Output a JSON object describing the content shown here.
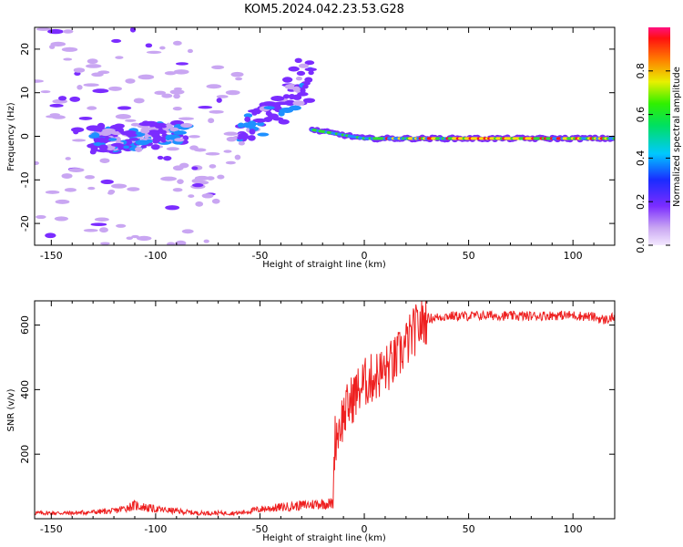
{
  "title": "KOM5.2024.042.23.53.G28",
  "chart_data": [
    {
      "type": "heatmap",
      "xlabel": "Height of straight line (km)",
      "ylabel": "Frequency (Hz)",
      "xlim": [
        -158,
        120
      ],
      "ylim": [
        -25,
        25
      ],
      "x_ticks": [
        -150,
        -100,
        -50,
        0,
        50,
        100
      ],
      "y_ticks": [
        -20,
        -10,
        0,
        10,
        20
      ],
      "colorbar": {
        "label": "Normalized spectral amplitude",
        "range": [
          0,
          1
        ],
        "ticks": [
          0.0,
          0.2,
          0.4,
          0.6,
          0.8
        ],
        "colormap": "rainbow (violet-blue-cyan-green-yellow-red)"
      },
      "colors": {
        "low": "#c9a6f2",
        "mid_low": "#7b2cff",
        "mid": "#1e90ff",
        "mid_high": "#30e030",
        "high": "#ffe000",
        "max": "#ff1a1a"
      },
      "features": [
        {
          "x_range": [
            -158,
            -60
          ],
          "freq_range": [
            -25,
            25
          ],
          "description": "scattered weak-to-moderate spectral blobs"
        },
        {
          "x_range": [
            -130,
            -85
          ],
          "freq_center": 0,
          "amplitude": 0.35,
          "description": "dense cluster near 0 Hz"
        },
        {
          "x_range": [
            -60,
            -25
          ],
          "freq_range": [
            0,
            15
          ],
          "amplitude": 0.3,
          "description": "tilted streak rising to ~15 Hz near -35 km"
        },
        {
          "x_range": [
            -25,
            120
          ],
          "freq_center": -0.5,
          "amplitude": 0.9,
          "description": "strong narrow line near 0 Hz"
        }
      ]
    },
    {
      "type": "line",
      "xlabel": "Height of straight line (km)",
      "ylabel": "SNR (v/v)",
      "xlim": [
        -158,
        120
      ],
      "ylim": [
        0,
        675
      ],
      "x_ticks": [
        -150,
        -100,
        -50,
        0,
        50,
        100
      ],
      "y_ticks": [
        200,
        400,
        600
      ],
      "color": "#ee2020",
      "series": [
        {
          "x": [
            -158,
            -140,
            -120,
            -110,
            -100,
            -80,
            -60,
            -50,
            -40,
            -30,
            -20,
            -15,
            -14,
            -10,
            -5,
            0,
            5,
            10,
            15,
            20,
            25,
            30,
            40,
            50,
            60,
            70,
            80,
            90,
            100,
            110,
            115,
            120
          ],
          "y": [
            15,
            15,
            20,
            35,
            25,
            15,
            15,
            25,
            30,
            35,
            40,
            40,
            250,
            320,
            380,
            420,
            440,
            460,
            490,
            540,
            590,
            620,
            628,
            628,
            630,
            628,
            628,
            630,
            630,
            625,
            615,
            625
          ]
        }
      ]
    }
  ]
}
